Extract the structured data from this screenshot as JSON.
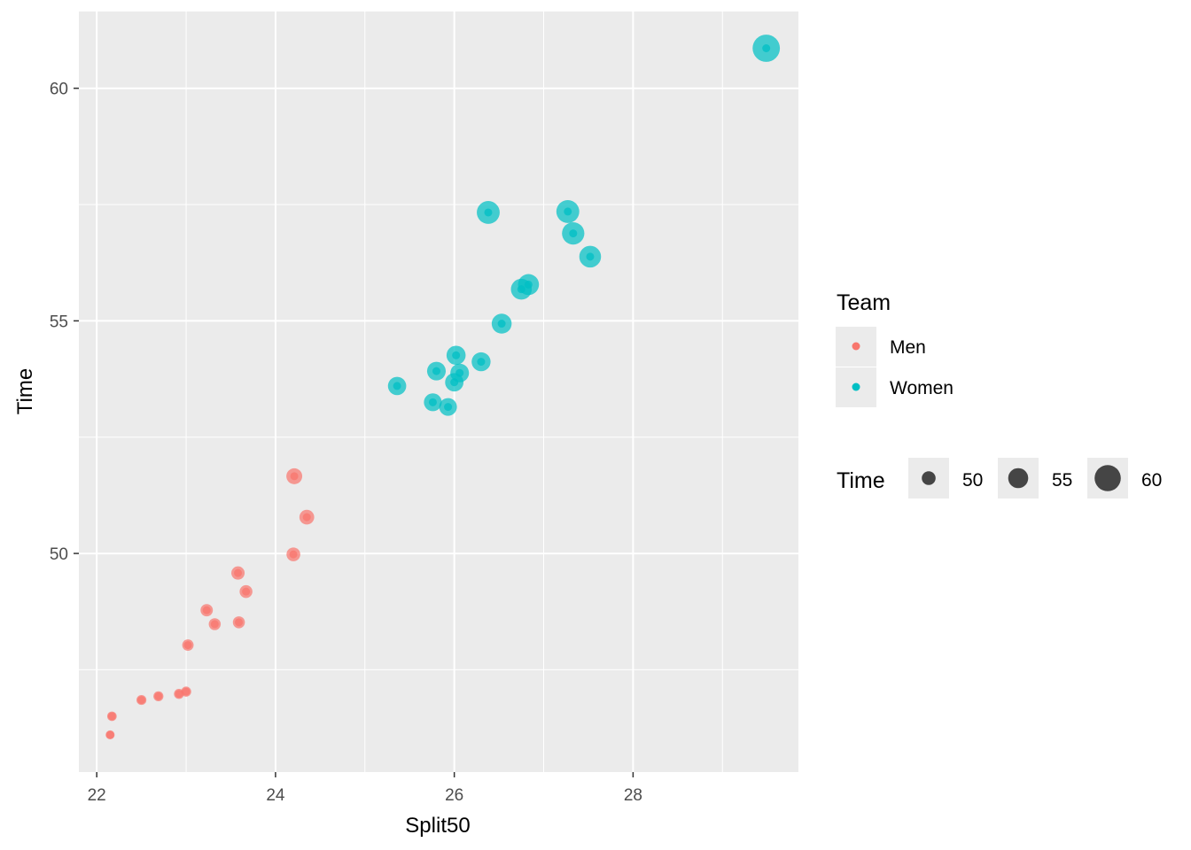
{
  "chart_data": {
    "type": "scatter",
    "xlabel": "Split50",
    "ylabel": "Time",
    "xlim": [
      21.8,
      29.85
    ],
    "ylim": [
      45.3,
      61.65
    ],
    "x_ticks": [
      22,
      24,
      26,
      28
    ],
    "x_tick_labels": [
      "22",
      "24",
      "26",
      "28"
    ],
    "y_ticks": [
      50,
      55,
      60
    ],
    "y_tick_labels": [
      "50",
      "55",
      "60"
    ],
    "grid": true,
    "legend_position": "right",
    "color_legend": {
      "title": "Team",
      "entries": [
        {
          "label": "Men",
          "color": "#F8766D"
        },
        {
          "label": "Women",
          "color": "#00BFC4"
        }
      ]
    },
    "size_legend": {
      "title": "Time",
      "entries": [
        {
          "label": "50",
          "value": 50
        },
        {
          "label": "55",
          "value": 55
        },
        {
          "label": "60",
          "value": 60
        }
      ]
    },
    "series": [
      {
        "name": "Men",
        "color": "#F8766D",
        "points": [
          {
            "x": 22.15,
            "y": 46.1
          },
          {
            "x": 22.17,
            "y": 46.5
          },
          {
            "x": 22.5,
            "y": 46.85
          },
          {
            "x": 22.69,
            "y": 46.93
          },
          {
            "x": 22.92,
            "y": 46.98
          },
          {
            "x": 23.0,
            "y": 47.03
          },
          {
            "x": 23.02,
            "y": 48.03
          },
          {
            "x": 23.23,
            "y": 48.78
          },
          {
            "x": 23.32,
            "y": 48.48
          },
          {
            "x": 23.59,
            "y": 48.52
          },
          {
            "x": 23.58,
            "y": 49.58
          },
          {
            "x": 23.67,
            "y": 49.18
          },
          {
            "x": 24.2,
            "y": 49.98
          },
          {
            "x": 24.21,
            "y": 51.66
          },
          {
            "x": 24.35,
            "y": 50.78
          }
        ]
      },
      {
        "name": "Women",
        "color": "#00BFC4",
        "points": [
          {
            "x": 25.36,
            "y": 53.6
          },
          {
            "x": 25.76,
            "y": 53.25
          },
          {
            "x": 25.8,
            "y": 53.92
          },
          {
            "x": 25.93,
            "y": 53.15
          },
          {
            "x": 26.0,
            "y": 53.68
          },
          {
            "x": 26.02,
            "y": 54.26
          },
          {
            "x": 26.06,
            "y": 53.88
          },
          {
            "x": 26.3,
            "y": 54.12
          },
          {
            "x": 26.38,
            "y": 57.33
          },
          {
            "x": 26.53,
            "y": 54.94
          },
          {
            "x": 26.75,
            "y": 55.68
          },
          {
            "x": 26.83,
            "y": 55.78
          },
          {
            "x": 27.27,
            "y": 57.35
          },
          {
            "x": 27.33,
            "y": 56.88
          },
          {
            "x": 27.52,
            "y": 56.38
          },
          {
            "x": 29.49,
            "y": 60.86
          }
        ]
      }
    ]
  }
}
